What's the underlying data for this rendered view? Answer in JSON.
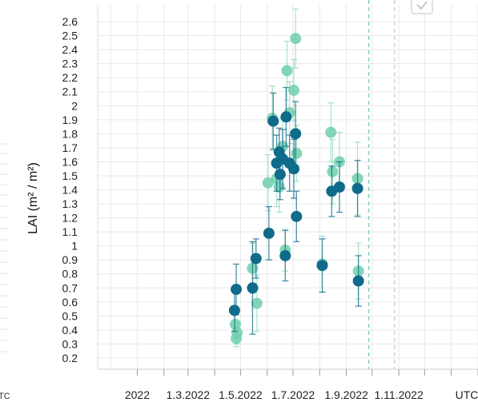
{
  "chart_data": {
    "type": "scatter",
    "title": "",
    "ylabel": "LAI (m² / m²)",
    "xlabel": "",
    "x_axis_type": "date",
    "xlim": [
      "2021-11-16",
      "2023-02-01"
    ],
    "ylim": [
      0.12,
      2.72
    ],
    "grid": true,
    "legend": "none",
    "y_ticks": [
      "0.2",
      "0.3",
      "0.4",
      "0.5",
      "0.6",
      "0.7",
      "0.8",
      "0.9",
      "1",
      "1.1",
      "1.2",
      "1.3",
      "1.4",
      "1.5",
      "1.6",
      "1.7",
      "1.8",
      "1.9",
      "2",
      "2.1",
      "2.2",
      "2.3",
      "2.4",
      "2.5",
      "2.6"
    ],
    "x_ticks": [
      {
        "date": "2022-01-01",
        "label": "2022"
      },
      {
        "date": "2022-03-01",
        "label": "1.3.2022"
      },
      {
        "date": "2022-05-01",
        "label": "1.5.2022"
      },
      {
        "date": "2022-07-01",
        "label": "1.7.2022"
      },
      {
        "date": "2022-09-01",
        "label": "1.9.2022"
      },
      {
        "date": "2022-11-01",
        "label": "1.11.2022"
      }
    ],
    "x_unit_label": "UTC",
    "left_edge_label": "TC",
    "reference_lines": [
      {
        "date": "2022-09-27",
        "color": "#7fcfc2"
      },
      {
        "date": "2022-10-27",
        "color": "#c9d2d6"
      }
    ],
    "series": [
      {
        "color": "#6fcfac",
        "points": [
          {
            "x": "2022-04-25",
            "y": 0.44,
            "err": 0.1
          },
          {
            "x": "2022-04-26",
            "y": 0.34,
            "err": 0.06
          },
          {
            "x": "2022-04-27",
            "y": 0.38,
            "err": 0.08
          },
          {
            "x": "2022-05-15",
            "y": 0.84,
            "err": 0.18
          },
          {
            "x": "2022-05-20",
            "y": 0.59,
            "err": 0.2
          },
          {
            "x": "2022-06-02",
            "y": 1.45,
            "err": 0.2
          },
          {
            "x": "2022-06-07",
            "y": 1.91,
            "err": 0.23
          },
          {
            "x": "2022-06-12",
            "y": 1.48,
            "err": 0.2
          },
          {
            "x": "2022-06-15",
            "y": 1.42,
            "err": 0.18
          },
          {
            "x": "2022-06-19",
            "y": 1.71,
            "err": 0.2
          },
          {
            "x": "2022-06-22",
            "y": 0.97,
            "err": 0.15
          },
          {
            "x": "2022-06-24",
            "y": 2.25,
            "err": 0.21
          },
          {
            "x": "2022-06-27",
            "y": 1.95,
            "err": 0.22
          },
          {
            "x": "2022-07-02",
            "y": 2.11,
            "err": 0.22
          },
          {
            "x": "2022-07-04",
            "y": 2.48,
            "err": 0.21
          },
          {
            "x": "2022-07-05",
            "y": 1.66,
            "err": 0.2
          },
          {
            "x": "2022-08-04",
            "y": 0.87,
            "err": 0.2
          },
          {
            "x": "2022-08-14",
            "y": 1.81,
            "err": 0.21
          },
          {
            "x": "2022-08-16",
            "y": 1.53,
            "err": 0.23
          },
          {
            "x": "2022-08-24",
            "y": 1.6,
            "err": 0.21
          },
          {
            "x": "2022-09-14",
            "y": 1.48,
            "err": 0.26
          },
          {
            "x": "2022-09-15",
            "y": 0.82,
            "err": 0.2
          }
        ]
      },
      {
        "color": "#0f6b8a",
        "points": [
          {
            "x": "2022-04-24",
            "y": 0.54,
            "err": 0.15
          },
          {
            "x": "2022-04-26",
            "y": 0.69,
            "err": 0.18
          },
          {
            "x": "2022-05-15",
            "y": 0.7,
            "err": 0.33
          },
          {
            "x": "2022-05-19",
            "y": 0.91,
            "err": 0.14
          },
          {
            "x": "2022-06-03",
            "y": 1.09,
            "err": 0.19
          },
          {
            "x": "2022-06-08",
            "y": 1.89,
            "err": 0.2
          },
          {
            "x": "2022-06-12",
            "y": 1.59,
            "err": 0.2
          },
          {
            "x": "2022-06-15",
            "y": 1.67,
            "err": 0.17
          },
          {
            "x": "2022-06-16",
            "y": 1.51,
            "err": 0.18
          },
          {
            "x": "2022-06-19",
            "y": 1.62,
            "err": 0.21
          },
          {
            "x": "2022-06-22",
            "y": 0.93,
            "err": 0.18
          },
          {
            "x": "2022-06-23",
            "y": 1.92,
            "err": 0.21
          },
          {
            "x": "2022-06-27",
            "y": 1.59,
            "err": 0.2
          },
          {
            "x": "2022-07-02",
            "y": 1.55,
            "err": 0.21
          },
          {
            "x": "2022-07-04",
            "y": 1.8,
            "err": 0.23
          },
          {
            "x": "2022-07-05",
            "y": 1.21,
            "err": 0.18
          },
          {
            "x": "2022-08-04",
            "y": 0.86,
            "err": 0.19
          },
          {
            "x": "2022-08-15",
            "y": 1.39,
            "err": 0.18
          },
          {
            "x": "2022-08-24",
            "y": 1.42,
            "err": 0.18
          },
          {
            "x": "2022-09-14",
            "y": 1.41,
            "err": 0.2
          },
          {
            "x": "2022-09-15",
            "y": 0.75,
            "err": 0.18
          }
        ]
      }
    ]
  }
}
